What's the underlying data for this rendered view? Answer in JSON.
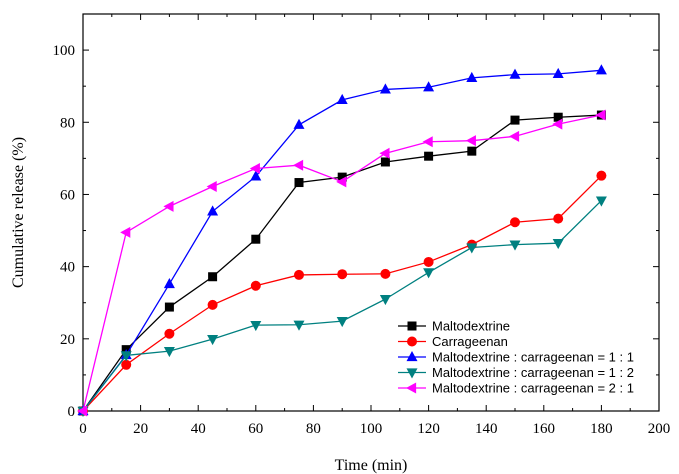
{
  "chart_data": {
    "type": "line",
    "xlabel": "Time (min)",
    "ylabel": "Cumulative release (%)",
    "xlim": [
      0,
      200
    ],
    "ylim": [
      0,
      110
    ],
    "xticks": [
      "0",
      "20",
      "40",
      "60",
      "80",
      "100",
      "120",
      "140",
      "160",
      "180",
      "200"
    ],
    "yticks": [
      "0",
      "20",
      "40",
      "60",
      "80",
      "100"
    ],
    "grid": false,
    "legend_position": "lower-right",
    "series": [
      {
        "name": "Maltodextrine",
        "color": "#000000",
        "marker": "square",
        "x": [
          0,
          15,
          30,
          45,
          60,
          75,
          90,
          105,
          120,
          135,
          150,
          165,
          180
        ],
        "y": [
          0,
          17,
          28.8,
          37.2,
          47.6,
          63.3,
          64.8,
          69,
          70.6,
          72,
          80.6,
          81.4,
          82
        ]
      },
      {
        "name": "Carrageenan",
        "color": "#ff0000",
        "marker": "circle",
        "x": [
          0,
          15,
          30,
          45,
          60,
          75,
          90,
          105,
          120,
          135,
          150,
          165,
          180
        ],
        "y": [
          0,
          12.8,
          21.4,
          29.4,
          34.7,
          37.7,
          37.9,
          38,
          41.3,
          46.1,
          52.3,
          53.3,
          65.2
        ]
      },
      {
        "name": "Maltodextrine : carrageenan = 1 : 1",
        "color": "#0000ff",
        "marker": "triangle-up",
        "x": [
          0,
          15,
          30,
          45,
          60,
          75,
          90,
          105,
          120,
          135,
          150,
          165,
          180
        ],
        "y": [
          0,
          15.5,
          35.2,
          55.3,
          65,
          79.3,
          86.2,
          89.1,
          89.7,
          92.3,
          93.2,
          93.4,
          94.4
        ]
      },
      {
        "name": "Maltodextrine : carrageenan = 1 : 2",
        "color": "#008080",
        "marker": "triangle-down",
        "x": [
          0,
          15,
          30,
          45,
          60,
          75,
          90,
          105,
          120,
          135,
          150,
          165,
          180
        ],
        "y": [
          0,
          15.4,
          16.6,
          19.9,
          23.8,
          23.9,
          24.9,
          31,
          38.4,
          45.3,
          46.1,
          46.5,
          58.3
        ]
      },
      {
        "name": "Maltodextrine : carrageenan = 2 : 1",
        "color": "#ff00ff",
        "marker": "triangle-left",
        "x": [
          0,
          15,
          30,
          45,
          60,
          75,
          90,
          105,
          120,
          135,
          150,
          165,
          180
        ],
        "y": [
          0,
          49.5,
          56.7,
          62.2,
          67.2,
          68.1,
          63.5,
          71.4,
          74.6,
          74.9,
          76.1,
          79.5,
          82
        ]
      }
    ]
  }
}
